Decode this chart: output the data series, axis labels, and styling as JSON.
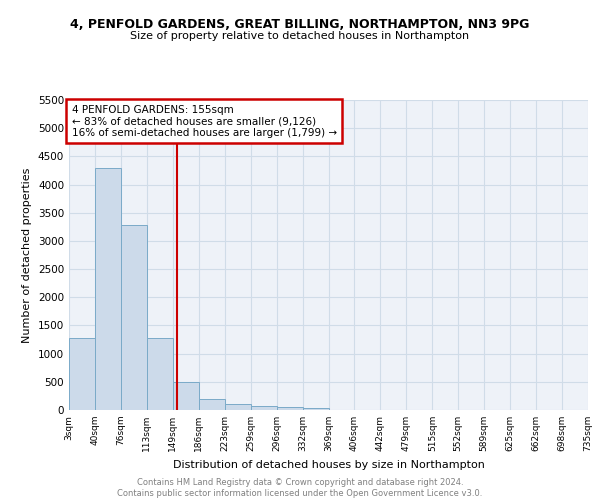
{
  "title": "4, PENFOLD GARDENS, GREAT BILLING, NORTHAMPTON, NN3 9PG",
  "subtitle": "Size of property relative to detached houses in Northampton",
  "xlabel": "Distribution of detached houses by size in Northampton",
  "ylabel": "Number of detached properties",
  "bar_values": [
    1270,
    4300,
    3280,
    1280,
    490,
    200,
    100,
    75,
    50,
    30,
    0,
    0,
    0,
    0,
    0,
    0,
    0,
    0,
    0,
    0
  ],
  "bin_labels": [
    "3sqm",
    "40sqm",
    "76sqm",
    "113sqm",
    "149sqm",
    "186sqm",
    "223sqm",
    "259sqm",
    "296sqm",
    "332sqm",
    "369sqm",
    "406sqm",
    "442sqm",
    "479sqm",
    "515sqm",
    "552sqm",
    "589sqm",
    "625sqm",
    "662sqm",
    "698sqm",
    "735sqm"
  ],
  "bar_color": "#ccdaea",
  "bar_edge_color": "#7aaac8",
  "vline_color": "#cc0000",
  "annotation_title": "4 PENFOLD GARDENS: 155sqm",
  "annotation_line1": "← 83% of detached houses are smaller (9,126)",
  "annotation_line2": "16% of semi-detached houses are larger (1,799) →",
  "annotation_box_color": "#cc0000",
  "ylim": [
    0,
    5500
  ],
  "yticks": [
    0,
    500,
    1000,
    1500,
    2000,
    2500,
    3000,
    3500,
    4000,
    4500,
    5000,
    5500
  ],
  "grid_color": "#d0dce8",
  "bg_color": "#eef2f8",
  "footer_line1": "Contains HM Land Registry data © Crown copyright and database right 2024.",
  "footer_line2": "Contains public sector information licensed under the Open Government Licence v3.0."
}
